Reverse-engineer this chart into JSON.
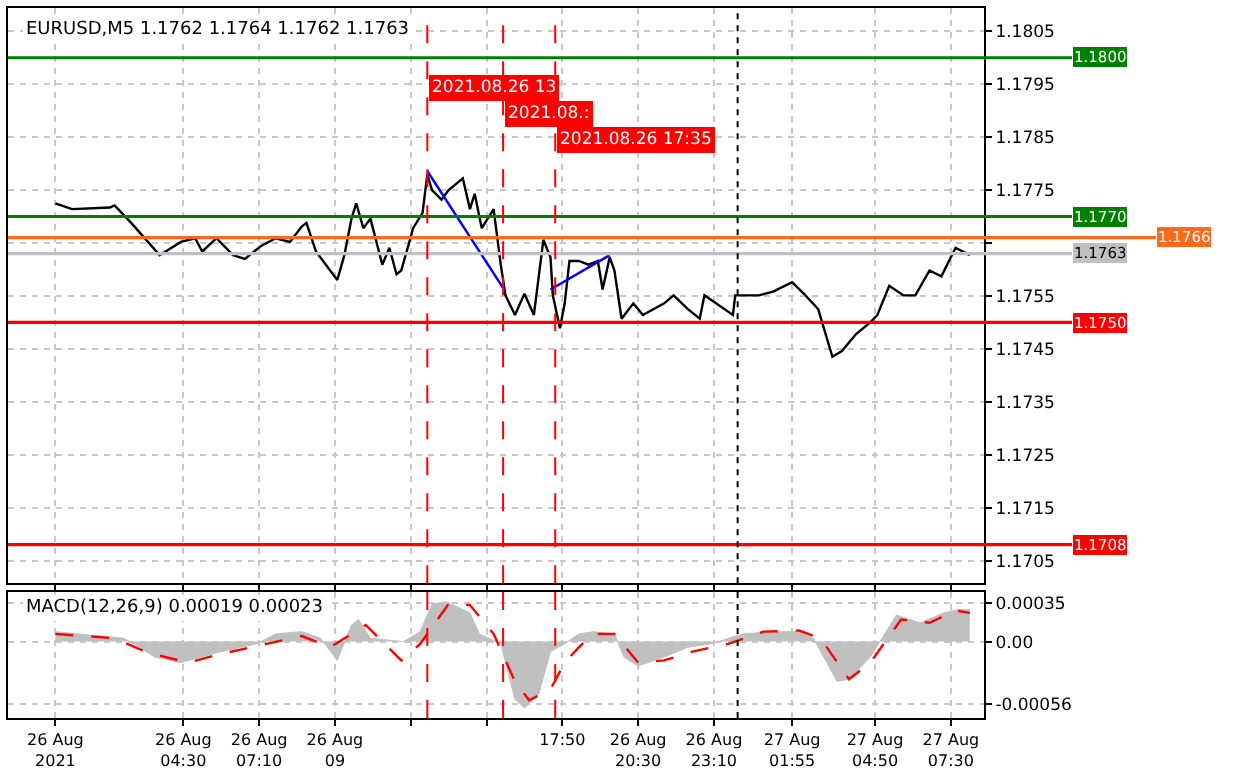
{
  "chart_data": [
    {
      "type": "line",
      "title": "EURUSD,M5 1.1762 1.1764 1.1762 1.1763",
      "grid": true,
      "legend": false,
      "marker": "none",
      "tick_labels": "y",
      "xlim": [
        "2021-08-25T22:20",
        "2021-08-27T08:40"
      ],
      "ylim": [
        1.17007,
        1.18094
      ],
      "xticks": [
        {
          "value": "2021-08-26",
          "label": null
        },
        {
          "value": "2021-08-26T04:30",
          "label": null
        },
        {
          "value": "2021-08-26T07:10",
          "label": null
        },
        {
          "value": "2021-08-26T09:50",
          "label": null
        },
        {
          "value": "2021-08-26T12:30",
          "label": null
        },
        {
          "value": "2021-08-26T15:10",
          "label": null
        },
        {
          "value": "2021-08-26T17:50",
          "label": null
        },
        {
          "value": "2021-08-26T20:30",
          "label": null
        },
        {
          "value": "2021-08-26T23:10",
          "label": null
        },
        {
          "value": "2021-08-27T01:55",
          "label": null
        },
        {
          "value": "2021-08-27T04:50",
          "label": null
        },
        {
          "value": "2021-08-27T07:30",
          "label": null
        }
      ],
      "yticks": [
        1.1705,
        1.1715,
        1.1725,
        1.1735,
        1.1745,
        1.1755,
        {
          "value": 1.1765,
          "label": null
        },
        1.1775,
        1.1785,
        1.1795,
        1.1805
      ],
      "series": [
        {
          "type": "line",
          "color": "#000000",
          "x": [
            "2021-08-26T00:00",
            "2021-08-26T00:35",
            "2021-08-26T01:55",
            "2021-08-26T02:05",
            "2021-08-26T02:40",
            "2021-08-26T03:40",
            "2021-08-26T04:25",
            "2021-08-26T04:55",
            "2021-08-26T05:10",
            "2021-08-26T05:40",
            "2021-08-26T06:15",
            "2021-08-26T06:40",
            "2021-08-26T07:15",
            "2021-08-26T07:45",
            "2021-08-26T08:15",
            "2021-08-26T08:40",
            "2021-08-26T08:50",
            "2021-08-26T09:10",
            "2021-08-26T09:55",
            "2021-08-26T10:10",
            "2021-08-26T10:25",
            "2021-08-26T10:35",
            "2021-08-26T10:50",
            "2021-08-26T11:05",
            "2021-08-26T11:30",
            "2021-08-26T11:45",
            "2021-08-26T12:00",
            "2021-08-26T12:10",
            "2021-08-26T12:25",
            "2021-08-26T12:35",
            "2021-08-26T12:55",
            "2021-08-26T13:05",
            "2021-08-26T13:15",
            "2021-08-26T13:35",
            "2021-08-26T13:50",
            "2021-08-26T14:20",
            "2021-08-26T14:35",
            "2021-08-26T14:45",
            "2021-08-26T15:00",
            "2021-08-26T15:25",
            "2021-08-26T15:40",
            "2021-08-26T15:50",
            "2021-08-26T16:10",
            "2021-08-26T16:30",
            "2021-08-26T16:50",
            "2021-08-26T17:10",
            "2021-08-26T17:25",
            "2021-08-26T17:30",
            "2021-08-26T17:45",
            "2021-08-26T17:55",
            "2021-08-26T18:05",
            "2021-08-26T18:25",
            "2021-08-26T18:45",
            "2021-08-26T19:05",
            "2021-08-26T19:15",
            "2021-08-26T19:30",
            "2021-08-26T19:40",
            "2021-08-26T19:55",
            "2021-08-26T20:20",
            "2021-08-26T20:40",
            "2021-08-26T21:25",
            "2021-08-26T21:45",
            "2021-08-26T22:15",
            "2021-08-26T22:40",
            "2021-08-26T22:50",
            "2021-08-26T23:50",
            "2021-08-26T23:55",
            "2021-08-27T00:45",
            "2021-08-27T01:15",
            "2021-08-27T01:55",
            "2021-08-27T02:20",
            "2021-08-27T02:50",
            "2021-08-27T03:20",
            "2021-08-27T03:40",
            "2021-08-27T04:10",
            "2021-08-27T04:40",
            "2021-08-27T04:55",
            "2021-08-27T05:20",
            "2021-08-27T05:50",
            "2021-08-27T06:15",
            "2021-08-27T06:45",
            "2021-08-27T07:10",
            "2021-08-27T07:40",
            "2021-08-27T08:10"
          ],
          "values": [
            1.17725,
            1.17714,
            1.17717,
            1.17721,
            1.17688,
            1.17627,
            1.17652,
            1.17659,
            1.17634,
            1.17659,
            1.17627,
            1.1762,
            1.17645,
            1.17659,
            1.17652,
            1.17681,
            1.17688,
            1.17634,
            1.1758,
            1.17627,
            1.17696,
            1.17725,
            1.17678,
            1.17696,
            1.17609,
            1.17641,
            1.17591,
            1.17598,
            1.17645,
            1.17678,
            1.17707,
            1.17779,
            1.1775,
            1.17732,
            1.1775,
            1.17772,
            1.17714,
            1.17743,
            1.17678,
            1.17714,
            1.17609,
            1.17551,
            1.17514,
            1.17554,
            1.17514,
            1.17656,
            1.17623,
            1.17551,
            1.17489,
            1.17536,
            1.17616,
            1.17616,
            1.17609,
            1.17616,
            1.17562,
            1.17623,
            1.17598,
            1.17507,
            1.17536,
            1.17514,
            1.17536,
            1.17551,
            1.17525,
            1.17507,
            1.17551,
            1.17514,
            1.17551,
            1.17551,
            1.17558,
            1.17576,
            1.17554,
            1.17525,
            1.17435,
            1.17446,
            1.17478,
            1.175,
            1.17514,
            1.17569,
            1.17551,
            1.17551,
            1.17598,
            1.17587,
            1.17641,
            1.17627
          ]
        },
        {
          "type": "line",
          "color": "#0000ff",
          "x": [
            "2021-08-26T13:05",
            "2021-08-26T15:50"
          ],
          "values": [
            1.17786,
            1.17558
          ]
        },
        {
          "type": "line",
          "color": "#0000ff",
          "x": [
            "2021-08-26T17:25",
            "2021-08-26T19:30"
          ],
          "values": [
            1.17562,
            1.17627
          ]
        }
      ],
      "ref_lines": [
        {
          "axis": "y",
          "value": 1.18,
          "label": "1.1800",
          "color": "#008000"
        },
        {
          "axis": "y",
          "value": 1.177,
          "label": "1.1770",
          "color": "#008000"
        },
        {
          "axis": "y",
          "value": 1.1766,
          "label": "1.1766",
          "color": "#ff6a1a"
        },
        {
          "axis": "y",
          "value": 1.1763,
          "label": "1.1763",
          "color": "#c0c0c0"
        },
        {
          "axis": "y",
          "value": 1.175,
          "label": "1.1750",
          "color": "#ff0000"
        },
        {
          "axis": "y",
          "value": 1.1708,
          "label": "1.1708",
          "color": "#ff0000"
        },
        {
          "axis": "x",
          "value": "2021-08-26T13:05",
          "label": "2021.08.26 13",
          "color": "#ff0000",
          "line_style": "dashed"
        },
        {
          "axis": "x",
          "value": "2021-08-26T15:45",
          "label": "2021.08.:",
          "color": "#ff0000",
          "line_style": "dashed"
        },
        {
          "axis": "x",
          "value": "2021-08-26T17:35",
          "label": "2021.08.26 17:35",
          "color": "#ff0000",
          "line_style": "dashed"
        },
        {
          "axis": "x",
          "value": "2021-08-27T00:00",
          "color": "#000000",
          "line_style": "dotted"
        }
      ]
    },
    {
      "type": "line",
      "title": "MACD(12,26,9) 0.00019 0.00023",
      "grid": true,
      "legend": false,
      "marker": "none",
      "xlim": [
        "2021-08-25T22:20",
        "2021-08-27T08:40"
      ],
      "ylim": [
        -0.00069,
        0.00045
      ],
      "xticks": [
        {
          "value": "2021-08-26",
          "label": "26 Aug 2021"
        },
        {
          "value": "2021-08-26T04:30",
          "label": "26 Aug 04:30"
        },
        {
          "value": "2021-08-26T07:10",
          "label": "26 Aug 07:10"
        },
        {
          "value": "2021-08-26T09:50",
          "label": "26 Aug 09"
        },
        {
          "value": "2021-08-26T12:30",
          "label": null
        },
        {
          "value": "2021-08-26T15:10",
          "label": null
        },
        {
          "value": "2021-08-26T17:50",
          "label": "17:50"
        },
        {
          "value": "2021-08-26T20:30",
          "label": "26 Aug 20:30"
        },
        {
          "value": "2021-08-26T23:10",
          "label": "26 Aug 23:10"
        },
        {
          "value": "2021-08-27T01:55",
          "label": "27 Aug 01:55"
        },
        {
          "value": "2021-08-27T04:50",
          "label": "27 Aug 04:50"
        },
        {
          "value": "2021-08-27T07:30",
          "label": "27 Aug 07:30"
        }
      ],
      "yticks": [
        {
          "value": -0.00056,
          "label": "-0.00056"
        },
        {
          "value": 0,
          "label": "0.00"
        },
        {
          "value": 0.00035,
          "label": "0.00035"
        }
      ],
      "series": [
        {
          "type": "area",
          "color": "#c0c0c0",
          "x": [
            "2021-08-26T00:00",
            "2021-08-26T02:25",
            "2021-08-26T03:30",
            "2021-08-26T04:25",
            "2021-08-26T05:40",
            "2021-08-26T07:05",
            "2021-08-26T07:45",
            "2021-08-26T08:40",
            "2021-08-26T09:20",
            "2021-08-26T09:55",
            "2021-08-26T10:25",
            "2021-08-26T10:40",
            "2021-08-26T11:05",
            "2021-08-26T12:15",
            "2021-08-26T12:50",
            "2021-08-26T13:15",
            "2021-08-26T13:45",
            "2021-08-26T14:35",
            "2021-08-26T14:55",
            "2021-08-26T15:40",
            "2021-08-26T16:10",
            "2021-08-26T16:30",
            "2021-08-26T17:00",
            "2021-08-26T17:25",
            "2021-08-26T17:55",
            "2021-08-26T18:25",
            "2021-08-26T18:55",
            "2021-08-26T19:40",
            "2021-08-26T20:00",
            "2021-08-26T20:30",
            "2021-08-26T21:25",
            "2021-08-26T22:15",
            "2021-08-26T23:05",
            "2021-08-27T00:10",
            "2021-08-27T01:15",
            "2021-08-27T02:10",
            "2021-08-27T02:40",
            "2021-08-27T03:30",
            "2021-08-27T03:55",
            "2021-08-27T04:40",
            "2021-08-27T05:05",
            "2021-08-27T05:35",
            "2021-08-27T06:25",
            "2021-08-27T07:15",
            "2021-08-27T07:45",
            "2021-08-27T08:10"
          ],
          "values": [
            9e-05,
            3e-05,
            -0.00014,
            -0.00019,
            -0.0001,
            -2e-05,
            7e-05,
            9e-05,
            3e-05,
            -0.00017,
            0.00015,
            0.0002,
            3e-05,
            0,
            9e-05,
            0.00034,
            0.00036,
            0.00026,
            7e-05,
            -2e-05,
            -0.00052,
            -0.0006,
            -0.00048,
            -9e-05,
            -2e-05,
            7e-05,
            9e-05,
            7e-05,
            -0.00014,
            -0.00022,
            -0.00014,
            -5e-05,
            -2e-05,
            7e-05,
            9e-05,
            9e-05,
            3e-05,
            -0.00036,
            -0.00034,
            -0.00014,
            3e-05,
            0.00024,
            0.00017,
            0.00026,
            0.00029,
            0.00029
          ]
        },
        {
          "type": "line",
          "color": "#ff0000",
          "line_style": "dashed",
          "x": [
            "2021-08-26T00:00",
            "2021-08-26T02:05",
            "2021-08-26T03:15",
            "2021-08-26T04:40",
            "2021-08-26T05:40",
            "2021-08-26T07:25",
            "2021-08-26T08:40",
            "2021-08-26T09:40",
            "2021-08-26T10:55",
            "2021-08-26T12:10",
            "2021-08-26T12:50",
            "2021-08-26T13:50",
            "2021-08-26T14:35",
            "2021-08-26T15:25",
            "2021-08-26T16:10",
            "2021-08-26T16:40",
            "2021-08-26T17:25",
            "2021-08-26T17:55",
            "2021-08-26T18:25",
            "2021-08-26T18:55",
            "2021-08-26T19:40",
            "2021-08-26T20:30",
            "2021-08-26T21:25",
            "2021-08-26T22:25",
            "2021-08-26T23:40",
            "2021-08-27T00:55",
            "2021-08-27T02:10",
            "2021-08-27T02:55",
            "2021-08-27T03:55",
            "2021-08-27T04:40",
            "2021-08-27T05:45",
            "2021-08-27T06:45",
            "2021-08-27T07:40",
            "2021-08-27T08:10"
          ],
          "values": [
            7e-05,
            3e-05,
            -0.0001,
            -0.00019,
            -0.00012,
            -2e-05,
            5e-05,
            -5e-05,
            0.00015,
            -0.00017,
            -2e-05,
            0.00034,
            0.00033,
            7e-05,
            -0.00036,
            -0.00053,
            -0.00043,
            -0.00019,
            -5e-05,
            7e-05,
            7e-05,
            -0.00019,
            -0.00017,
            -9e-05,
            -2e-05,
            9e-05,
            0.0001,
            3e-05,
            -0.00034,
            -0.00019,
            0.0002,
            0.00017,
            0.00028,
            0.00026
          ]
        }
      ],
      "ref_lines": [
        {
          "axis": "x",
          "value": "2021-08-26T13:05",
          "color": "#ff0000",
          "line_style": "dashed"
        },
        {
          "axis": "x",
          "value": "2021-08-26T15:45",
          "color": "#ff0000",
          "line_style": "dashed"
        },
        {
          "axis": "x",
          "value": "2021-08-26T17:35",
          "color": "#ff0000",
          "line_style": "dashed"
        },
        {
          "axis": "x",
          "value": "2021-08-27T00:00",
          "color": "#000000",
          "line_style": "dotted"
        }
      ]
    }
  ]
}
